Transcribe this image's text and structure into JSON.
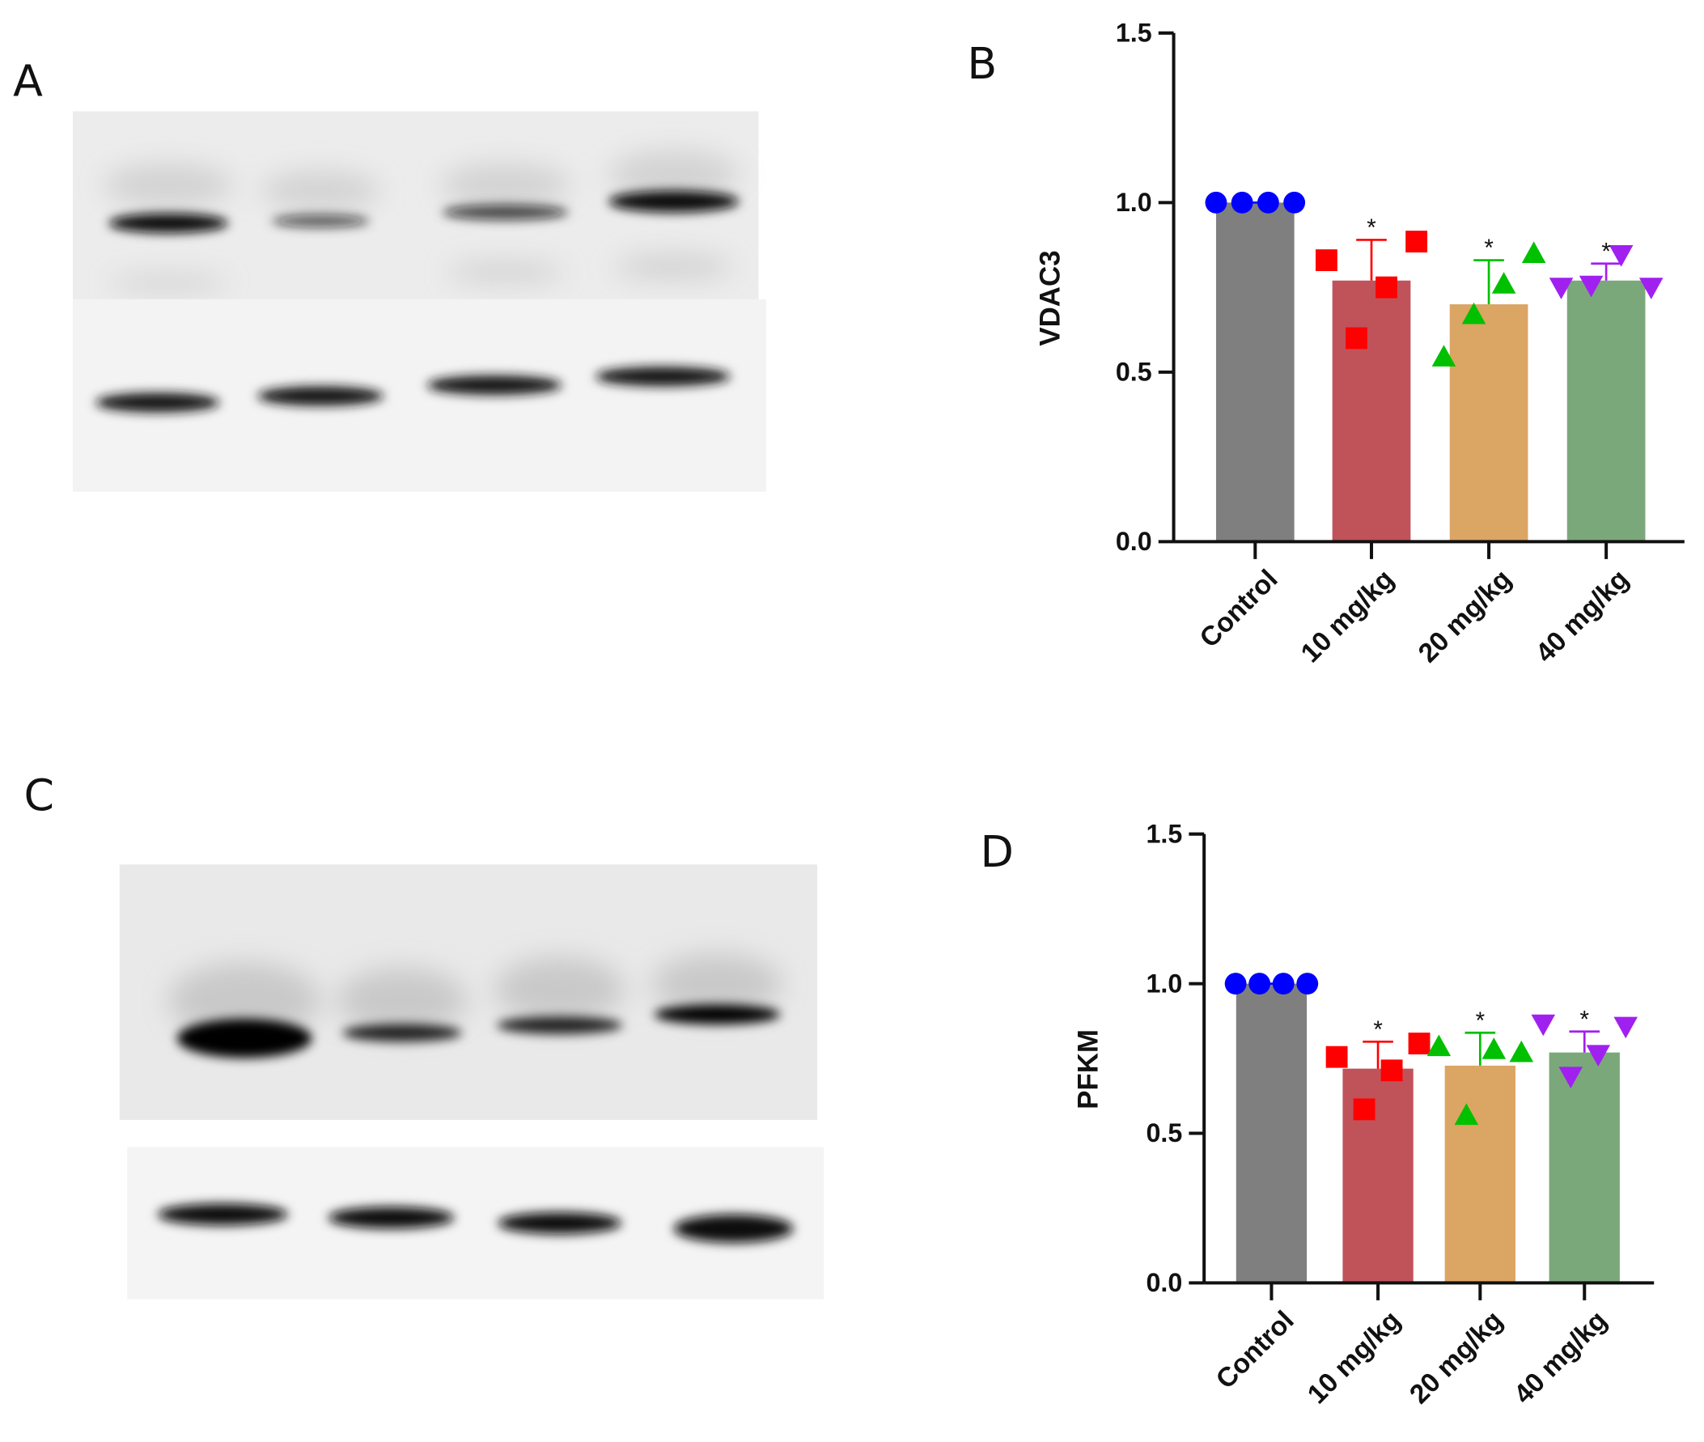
{
  "panel_labels": [
    "A",
    "B",
    "C",
    "D"
  ],
  "chart_data": [
    {
      "type": "bar",
      "y_label": "VDAC3",
      "categories": [
        "Control",
        "10 mg/kg",
        "20 mg/kg",
        "40 mg/kg"
      ],
      "values": [
        1.0,
        0.77,
        0.7,
        0.77
      ],
      "errors": [
        0,
        0.12,
        0.13,
        0.05
      ],
      "colors": [
        "#7f7f7f",
        "#c0535a",
        "#dba564",
        "#7ba87a"
      ],
      "points": [
        [
          1.0,
          1.0,
          1.0,
          1.0
        ],
        [
          0.83,
          0.6,
          0.75,
          0.885
        ],
        [
          0.545,
          0.67,
          0.76,
          0.85
        ],
        [
          0.75,
          0.756,
          0.846,
          0.75
        ]
      ],
      "point_colors": [
        "#0000ff",
        "#ff0000",
        "#00c000",
        "#a020f0"
      ],
      "markers": [
        "circle",
        "square",
        "triangle",
        "triangle-down"
      ],
      "significance": [
        null,
        "*",
        "*",
        "*"
      ],
      "ylim": [
        0,
        1.5
      ],
      "yticks": [
        {
          "value": 0,
          "label": "0.0"
        },
        0.5,
        {
          "value": 1,
          "label": "1.0"
        },
        1.5
      ]
    },
    {
      "type": "bar",
      "y_label": "PFKM",
      "categories": [
        "Control",
        "10 mg/kg",
        "20 mg/kg",
        "40 mg/kg"
      ],
      "values": [
        1.0,
        0.716,
        0.726,
        0.77
      ],
      "errors": [
        0,
        0.09,
        0.11,
        0.07
      ],
      "colors": [
        "#7f7f7f",
        "#c0535a",
        "#dba564",
        "#7ba87a"
      ],
      "points": [
        [
          1.0,
          1.0,
          1.0,
          1.0
        ],
        [
          0.755,
          0.58,
          0.71,
          0.8
        ],
        [
          0.79,
          0.56,
          0.78,
          0.77
        ],
        [
          0.865,
          0.69,
          0.763,
          0.857
        ]
      ],
      "point_colors": [
        "#0000ff",
        "#ff0000",
        "#00c000",
        "#a020f0"
      ],
      "markers": [
        "circle",
        "square",
        "triangle",
        "triangle-down"
      ],
      "significance": [
        null,
        "*",
        "*",
        "*"
      ],
      "ylim": [
        0,
        1.5
      ],
      "yticks": [
        {
          "value": 0,
          "label": "0.0"
        },
        0.5,
        {
          "value": 1,
          "label": "1.0"
        },
        1.5
      ]
    }
  ]
}
